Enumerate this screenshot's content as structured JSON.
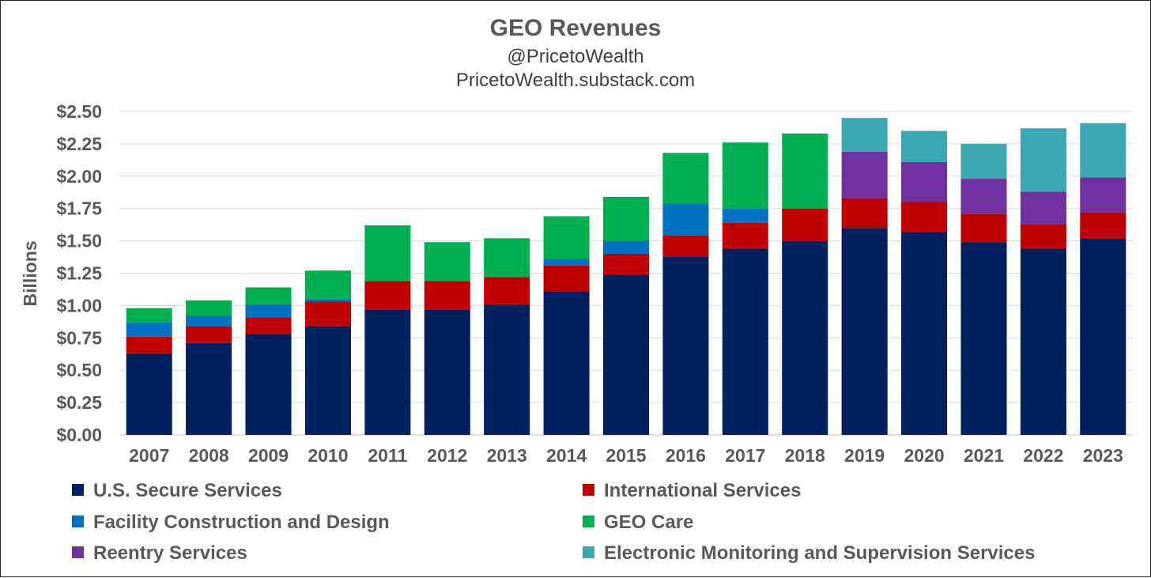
{
  "chart_data": {
    "type": "bar",
    "stacked": true,
    "title": "GEO Revenues",
    "subtitle_lines": [
      "@PricetoWealth",
      "PricetoWealth.substack.com"
    ],
    "xlabel": "",
    "ylabel": "Billions",
    "ylim": [
      0,
      2.5
    ],
    "yticks": [
      0,
      0.25,
      0.5,
      0.75,
      1.0,
      1.25,
      1.5,
      1.75,
      2.0,
      2.25,
      2.5
    ],
    "ytick_labels": [
      "$0.00",
      "$0.25",
      "$0.50",
      "$0.75",
      "$1.00",
      "$1.25",
      "$1.50",
      "$1.75",
      "$2.00",
      "$2.25",
      "$2.50"
    ],
    "grid": true,
    "legend_position": "bottom",
    "categories": [
      "2007",
      "2008",
      "2009",
      "2010",
      "2011",
      "2012",
      "2013",
      "2014",
      "2015",
      "2016",
      "2017",
      "2018",
      "2019",
      "2020",
      "2021",
      "2022",
      "2023"
    ],
    "series": [
      {
        "name": "U.S. Secure Services",
        "color": "#002060",
        "values": [
          0.63,
          0.71,
          0.78,
          0.84,
          0.97,
          0.97,
          1.01,
          1.11,
          1.24,
          1.38,
          1.44,
          1.5,
          1.6,
          1.57,
          1.49,
          1.44,
          1.52
        ]
      },
      {
        "name": "International Services",
        "color": "#c00000",
        "values": [
          0.13,
          0.13,
          0.13,
          0.19,
          0.22,
          0.22,
          0.21,
          0.2,
          0.16,
          0.16,
          0.2,
          0.25,
          0.23,
          0.23,
          0.22,
          0.19,
          0.2
        ]
      },
      {
        "name": "Facility Construction and Design",
        "color": "#0070c0",
        "values": [
          0.11,
          0.08,
          0.1,
          0.02,
          0.0,
          0.0,
          0.0,
          0.05,
          0.1,
          0.25,
          0.11,
          0.0,
          0.0,
          0.0,
          0.0,
          0.0,
          0.0
        ]
      },
      {
        "name": "GEO Care",
        "color": "#00b050",
        "values": [
          0.11,
          0.12,
          0.13,
          0.22,
          0.43,
          0.3,
          0.3,
          0.33,
          0.34,
          0.39,
          0.51,
          0.58,
          0.0,
          0.0,
          0.0,
          0.0,
          0.0
        ]
      },
      {
        "name": "Reentry Services",
        "color": "#7030a0",
        "values": [
          0,
          0,
          0,
          0,
          0,
          0,
          0,
          0,
          0,
          0,
          0,
          0,
          0.36,
          0.31,
          0.27,
          0.25,
          0.27
        ]
      },
      {
        "name": "Electronic Monitoring and Supervision Services",
        "color": "#3ba7b3",
        "values": [
          0,
          0,
          0,
          0,
          0,
          0,
          0,
          0,
          0,
          0,
          0,
          0,
          0.26,
          0.24,
          0.27,
          0.49,
          0.42
        ]
      }
    ]
  }
}
